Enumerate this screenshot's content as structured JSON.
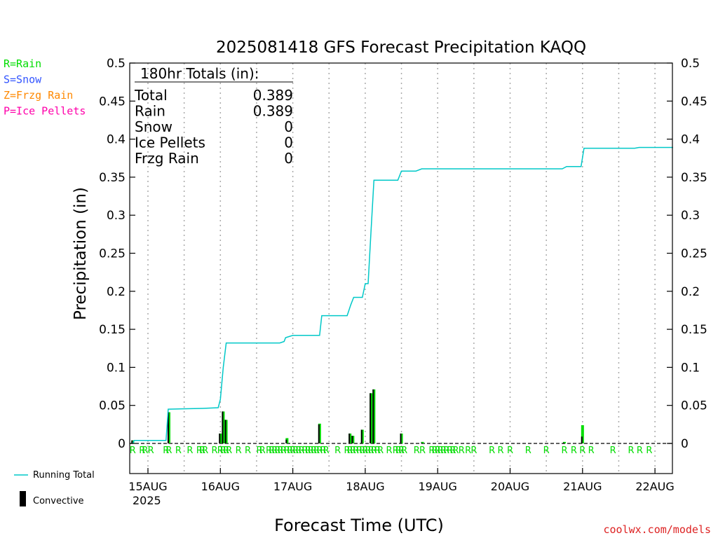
{
  "chart_data": {
    "type": "bar",
    "title": "2025081418 GFS Forecast Precipitation KAQQ",
    "xlabel": "Forecast Time (UTC)",
    "ylabel": "Precipitation (in)",
    "ylim": [
      0,
      0.5
    ],
    "y_ticks": [
      "0.5",
      "0.45",
      "0.4",
      "0.35",
      "0.3",
      "0.25",
      "0.2",
      "0.15",
      "0.1",
      "0.05",
      "0"
    ],
    "x_tick_labels": [
      {
        "day": 15,
        "label": "15AUG",
        "sub": "2025"
      },
      {
        "day": 16,
        "label": "16AUG",
        "sub": ""
      },
      {
        "day": 17,
        "label": "17AUG",
        "sub": ""
      },
      {
        "day": 18,
        "label": "18AUG",
        "sub": ""
      },
      {
        "day": 19,
        "label": "19AUG",
        "sub": ""
      },
      {
        "day": 20,
        "label": "20AUG",
        "sub": ""
      },
      {
        "day": 21,
        "label": "21AUG",
        "sub": ""
      },
      {
        "day": 22,
        "label": "22AUG",
        "sub": ""
      }
    ],
    "xlim_days": [
      14.75,
      22.25
    ],
    "legend_types": [
      {
        "label": "R=Rain",
        "color": "#00dd00"
      },
      {
        "label": "S=Snow",
        "color": "#3355ff"
      },
      {
        "label": "Z=Frzg Rain",
        "color": "#ff8800"
      },
      {
        "label": "P=Ice Pellets",
        "color": "#ff00aa"
      }
    ],
    "legend_series": [
      {
        "label": "Running Total",
        "color": "#00c8c8"
      },
      {
        "label": "Convective",
        "color": "#000000"
      }
    ],
    "totals": {
      "header": "180hr Totals (in):",
      "rows": [
        {
          "label": "Total",
          "value": "0.389"
        },
        {
          "label": "Rain",
          "value": "0.389"
        },
        {
          "label": "Snow",
          "value": "0"
        },
        {
          "label": "Ice Pellets",
          "value": "0"
        },
        {
          "label": "Frzg Rain",
          "value": "0"
        }
      ]
    },
    "running_total": [
      [
        14.79,
        0.0
      ],
      [
        14.81,
        0.004
      ],
      [
        15.25,
        0.004
      ],
      [
        15.28,
        0.045
      ],
      [
        15.75,
        0.046
      ],
      [
        15.97,
        0.047
      ],
      [
        16.0,
        0.058
      ],
      [
        16.04,
        0.1
      ],
      [
        16.08,
        0.132
      ],
      [
        16.5,
        0.132
      ],
      [
        16.82,
        0.132
      ],
      [
        16.88,
        0.134
      ],
      [
        16.9,
        0.139
      ],
      [
        17.0,
        0.142
      ],
      [
        17.25,
        0.142
      ],
      [
        17.37,
        0.142
      ],
      [
        17.4,
        0.168
      ],
      [
        17.75,
        0.168
      ],
      [
        17.8,
        0.182
      ],
      [
        17.84,
        0.192
      ],
      [
        17.96,
        0.192
      ],
      [
        18.0,
        0.21
      ],
      [
        18.04,
        0.21
      ],
      [
        18.08,
        0.28
      ],
      [
        18.12,
        0.346
      ],
      [
        18.45,
        0.346
      ],
      [
        18.5,
        0.358
      ],
      [
        18.7,
        0.358
      ],
      [
        18.78,
        0.361
      ],
      [
        19.0,
        0.361
      ],
      [
        20.5,
        0.361
      ],
      [
        20.72,
        0.361
      ],
      [
        20.78,
        0.364
      ],
      [
        20.98,
        0.364
      ],
      [
        21.02,
        0.388
      ],
      [
        21.5,
        0.388
      ],
      [
        21.72,
        0.388
      ],
      [
        21.78,
        0.389
      ],
      [
        22.0,
        0.389
      ],
      [
        22.25,
        0.389
      ]
    ],
    "bars": [
      {
        "d": 14.79,
        "total": 0.004,
        "conv": 0.004
      },
      {
        "d": 15.29,
        "total": 0.041,
        "conv": 0.041
      },
      {
        "d": 16.0,
        "total": 0.013,
        "conv": 0.013
      },
      {
        "d": 16.04,
        "total": 0.042,
        "conv": 0.042
      },
      {
        "d": 16.08,
        "total": 0.031,
        "conv": 0.031
      },
      {
        "d": 16.92,
        "total": 0.007,
        "conv": 0.005
      },
      {
        "d": 17.37,
        "total": 0.026,
        "conv": 0.025
      },
      {
        "d": 17.79,
        "total": 0.013,
        "conv": 0.013
      },
      {
        "d": 17.83,
        "total": 0.01,
        "conv": 0.01
      },
      {
        "d": 17.96,
        "total": 0.018,
        "conv": 0.018
      },
      {
        "d": 18.08,
        "total": 0.066,
        "conv": 0.066
      },
      {
        "d": 18.12,
        "total": 0.071,
        "conv": 0.071
      },
      {
        "d": 18.5,
        "total": 0.013,
        "conv": 0.013
      },
      {
        "d": 18.79,
        "total": 0.002,
        "conv": 0.001
      },
      {
        "d": 20.75,
        "total": 0.002,
        "conv": 0.001
      },
      {
        "d": 21.0,
        "total": 0.024,
        "conv": 0.009
      }
    ],
    "type_marks": {
      "symbol": "R",
      "days": [
        14.79,
        14.92,
        14.96,
        15.04,
        15.25,
        15.29,
        15.42,
        15.58,
        15.71,
        15.75,
        15.79,
        15.92,
        16.0,
        16.04,
        16.08,
        16.12,
        16.25,
        16.38,
        16.54,
        16.58,
        16.67,
        16.71,
        16.75,
        16.79,
        16.83,
        16.87,
        16.92,
        16.96,
        17.0,
        17.04,
        17.08,
        17.12,
        17.17,
        17.21,
        17.25,
        17.29,
        17.33,
        17.37,
        17.42,
        17.46,
        17.62,
        17.75,
        17.79,
        17.83,
        17.87,
        17.92,
        17.96,
        18.0,
        18.04,
        18.08,
        18.12,
        18.17,
        18.21,
        18.33,
        18.42,
        18.46,
        18.5,
        18.54,
        18.71,
        18.79,
        18.92,
        18.96,
        19.0,
        19.04,
        19.08,
        19.12,
        19.17,
        19.21,
        19.25,
        19.33,
        19.42,
        19.5,
        19.75,
        19.87,
        20.0,
        20.25,
        20.5,
        20.75,
        20.88,
        21.0,
        21.12,
        21.42,
        21.67,
        21.79,
        21.92
      ]
    },
    "footer": "coolwx.com/models"
  }
}
